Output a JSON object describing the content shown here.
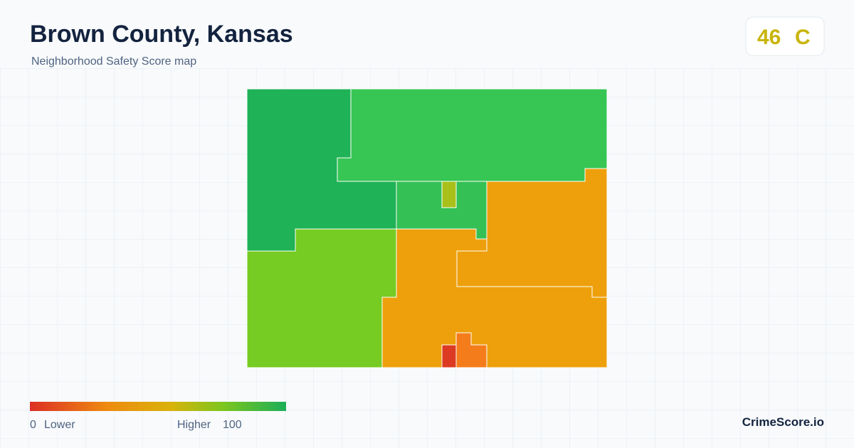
{
  "header": {
    "title": "Brown County, Kansas",
    "subtitle": "Neighborhood Safety Score map"
  },
  "score": {
    "value": "46",
    "grade": "C"
  },
  "legend": {
    "min": "0",
    "min_label": "Lower",
    "max_label": "Higher",
    "max": "100"
  },
  "brand": "CrimeScore.io"
}
